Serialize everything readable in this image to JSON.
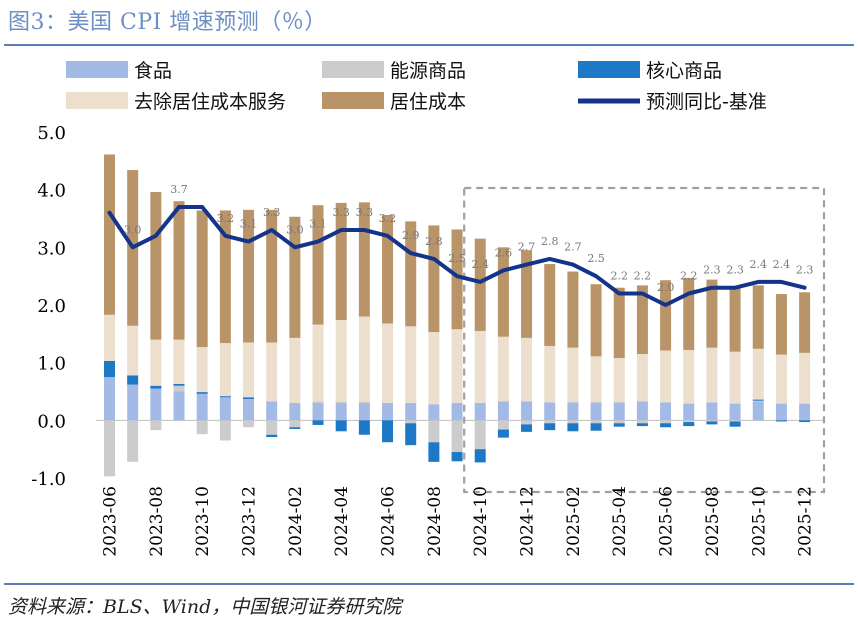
{
  "title": "图3：美国 CPI 增速预测（％）",
  "source": "资料来源：BLS、Wind，中国银河证券研究院",
  "colors": {
    "food": "#a3b9e6",
    "energy": "#cccccc",
    "core_goods": "#1d78c6",
    "core_services_ex_shelter": "#ecdfcd",
    "shelter": "#b99468",
    "forecast_line": "#14338a",
    "forecast_box": "#a0a0a0"
  },
  "chart_data": {
    "type": "bar",
    "stacked": true,
    "title": "美国 CPI 增速预测（％）",
    "ylim": [
      -1.0,
      5.0
    ],
    "yticks": [
      "5.0",
      "4.0",
      "3.0",
      "2.0",
      "1.0",
      "0.0",
      "-1.0"
    ],
    "ytick_values": [
      5.0,
      4.0,
      3.0,
      2.0,
      1.0,
      0.0,
      -1.0
    ],
    "categories": [
      "2023-06",
      "2023-07",
      "2023-08",
      "2023-09",
      "2023-10",
      "2023-11",
      "2023-12",
      "2024-01",
      "2024-02",
      "2024-03",
      "2024-04",
      "2024-05",
      "2024-06",
      "2024-07",
      "2024-08",
      "2024-09",
      "2024-10",
      "2024-11",
      "2024-12",
      "2025-01",
      "2025-02",
      "2025-03",
      "2025-04",
      "2025-05",
      "2025-06",
      "2025-07",
      "2025-08",
      "2025-09",
      "2025-10",
      "2025-11",
      "2025-12"
    ],
    "xtick_labels": [
      "2023-06",
      "2023-08",
      "2023-10",
      "2023-12",
      "2024-02",
      "2024-04",
      "2024-06",
      "2024-08",
      "2024-10",
      "2024-12",
      "2025-02",
      "2025-04",
      "2025-06",
      "2025-08",
      "2025-10",
      "2025-12"
    ],
    "forecast_start": "2024-10",
    "series": [
      {
        "name": "食品",
        "key": "food",
        "values": [
          0.75,
          0.62,
          0.55,
          0.5,
          0.46,
          0.4,
          0.37,
          0.33,
          0.3,
          0.3,
          0.3,
          0.3,
          0.3,
          0.3,
          0.28,
          0.3,
          0.3,
          0.33,
          0.33,
          0.31,
          0.31,
          0.31,
          0.31,
          0.33,
          0.31,
          0.29,
          0.31,
          0.29,
          0.33,
          0.29,
          0.29
        ]
      },
      {
        "name": "能源商品",
        "key": "energy",
        "values": [
          -0.97,
          -0.72,
          -0.17,
          0.1,
          -0.24,
          -0.35,
          -0.12,
          -0.25,
          -0.12,
          0.03,
          0.02,
          0.02,
          0.0,
          -0.05,
          -0.38,
          -0.55,
          -0.5,
          -0.16,
          -0.07,
          -0.05,
          -0.05,
          -0.05,
          -0.05,
          -0.05,
          -0.05,
          -0.03,
          -0.02,
          -0.02,
          0.01,
          0.0,
          0.0
        ]
      },
      {
        "name": "核心商品",
        "key": "core_goods",
        "values": [
          0.28,
          0.16,
          0.05,
          0.03,
          0.03,
          0.02,
          0.03,
          -0.04,
          -0.03,
          -0.08,
          -0.19,
          -0.25,
          -0.38,
          -0.38,
          -0.34,
          -0.16,
          -0.23,
          -0.14,
          -0.13,
          -0.12,
          -0.14,
          -0.13,
          -0.06,
          -0.05,
          -0.07,
          -0.07,
          -0.05,
          -0.09,
          0.02,
          -0.02,
          -0.03
        ]
      },
      {
        "name": "去除居住成本服务",
        "key": "core_services_ex_shelter",
        "values": [
          0.8,
          0.86,
          0.8,
          0.77,
          0.78,
          0.92,
          0.95,
          1.02,
          1.13,
          1.33,
          1.42,
          1.48,
          1.38,
          1.33,
          1.25,
          1.28,
          1.25,
          1.12,
          1.1,
          0.98,
          0.95,
          0.8,
          0.77,
          0.82,
          0.9,
          0.93,
          0.95,
          0.9,
          0.88,
          0.85,
          0.88
        ]
      },
      {
        "name": "居住成本",
        "key": "shelter",
        "values": [
          2.78,
          2.7,
          2.56,
          2.4,
          2.37,
          2.3,
          2.3,
          2.3,
          2.1,
          2.07,
          2.03,
          1.98,
          1.88,
          1.82,
          1.85,
          1.73,
          1.6,
          1.55,
          1.52,
          1.42,
          1.32,
          1.25,
          1.22,
          1.19,
          1.22,
          1.25,
          1.18,
          1.14,
          1.1,
          1.05,
          1.05
        ]
      }
    ],
    "line": {
      "name": "预测同比-基准",
      "values": [
        3.6,
        3.0,
        3.2,
        3.7,
        3.7,
        3.2,
        3.1,
        3.3,
        3.0,
        3.1,
        3.3,
        3.3,
        3.2,
        2.9,
        2.8,
        2.5,
        2.4,
        2.6,
        2.7,
        2.8,
        2.7,
        2.5,
        2.2,
        2.2,
        2.0,
        2.2,
        2.3,
        2.3,
        2.4,
        2.4,
        2.3
      ],
      "labels": [
        "",
        "3.0",
        "",
        "3.7",
        "",
        "3.2",
        "3.1",
        "3.3",
        "3.0",
        "3.1",
        "3.3",
        "3.3",
        "3.2",
        "2.9",
        "2.8",
        "2.5",
        "2.4",
        "2.6",
        "2.7",
        "2.8",
        "2.7",
        "2.5",
        "2.2",
        "2.2",
        "2.0",
        "2.2",
        "2.3",
        "2.3",
        "2.4",
        "2.4",
        "2.3"
      ]
    },
    "legend": {
      "placement": "top",
      "items": [
        {
          "label": "食品",
          "key": "food",
          "kind": "rect"
        },
        {
          "label": "能源商品",
          "key": "energy",
          "kind": "rect"
        },
        {
          "label": "核心商品",
          "key": "core_goods",
          "kind": "rect"
        },
        {
          "label": "去除居住成本服务",
          "key": "core_services_ex_shelter",
          "kind": "rect"
        },
        {
          "label": "居住成本",
          "key": "shelter",
          "kind": "rect"
        },
        {
          "label": "预测同比-基准",
          "key": "forecast_line",
          "kind": "line"
        }
      ]
    }
  }
}
